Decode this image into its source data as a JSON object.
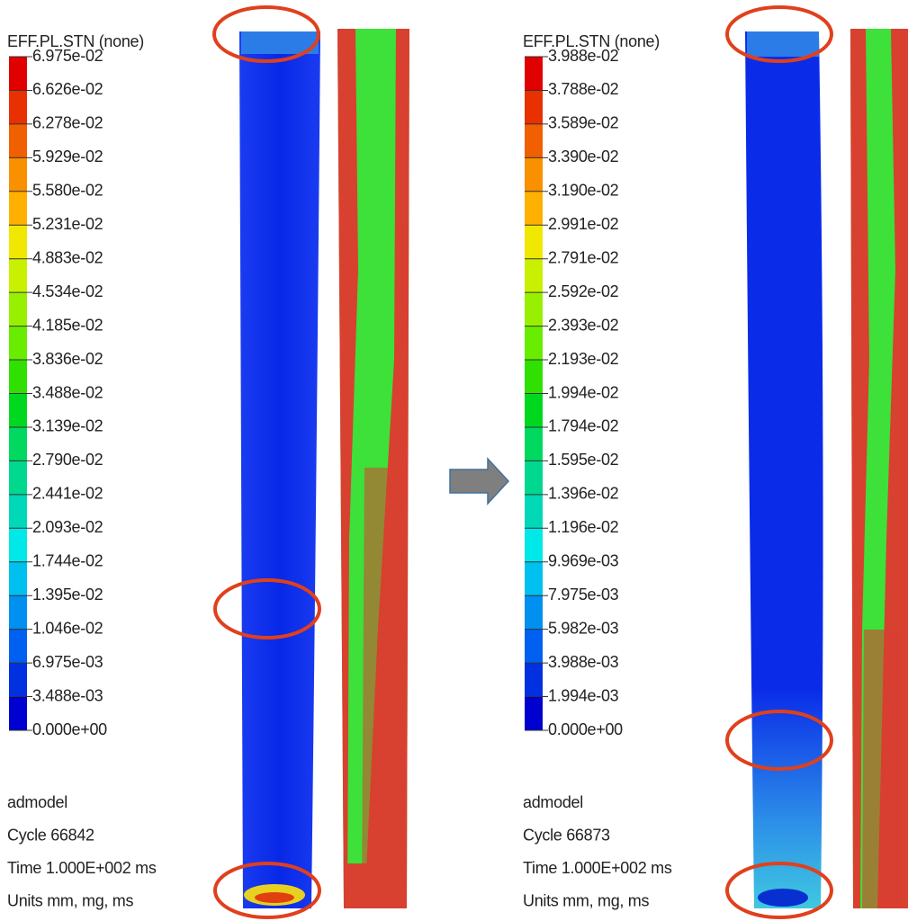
{
  "panels": [
    {
      "legend": {
        "title": "EFF.PL.STN (none)",
        "labels": [
          "6.975e-02",
          "6.626e-02",
          "6.278e-02",
          "5.929e-02",
          "5.580e-02",
          "5.231e-02",
          "4.883e-02",
          "4.534e-02",
          "4.185e-02",
          "3.836e-02",
          "3.488e-02",
          "3.139e-02",
          "2.790e-02",
          "2.441e-02",
          "2.093e-02",
          "1.744e-02",
          "1.395e-02",
          "1.046e-02",
          "6.975e-03",
          "3.488e-03",
          "0.000e+00"
        ]
      },
      "info": [
        "admodel",
        "Cycle 66842",
        "Time 1.000E+002 ms",
        "Units mm, mg, ms"
      ]
    },
    {
      "legend": {
        "title": "EFF.PL.STN (none)",
        "labels": [
          "3.988e-02",
          "3.788e-02",
          "3.589e-02",
          "3.390e-02",
          "3.190e-02",
          "2.991e-02",
          "2.791e-02",
          "2.592e-02",
          "2.393e-02",
          "2.193e-02",
          "1.994e-02",
          "1.794e-02",
          "1.595e-02",
          "1.396e-02",
          "1.196e-02",
          "9.969e-03",
          "7.975e-03",
          "5.982e-03",
          "3.988e-03",
          "1.994e-03",
          "0.000e+00"
        ]
      },
      "info": [
        "admodel",
        "Cycle 66873",
        "Time 1.000E+002 ms",
        "Units mm, mg, ms"
      ]
    }
  ]
}
